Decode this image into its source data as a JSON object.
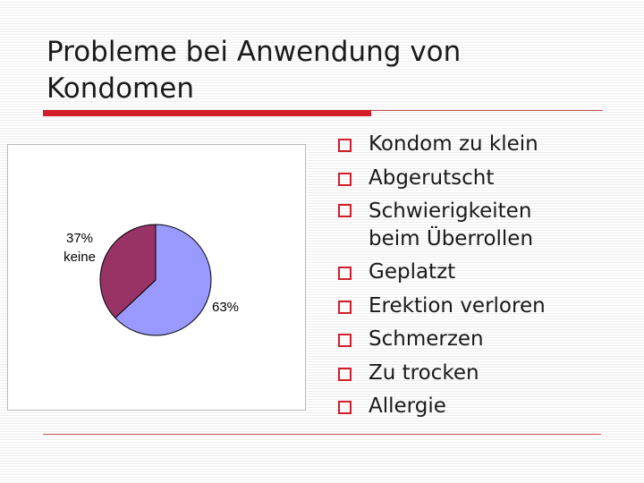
{
  "slide": {
    "title": "Probleme bei Anwendung von Kondomen",
    "accent_color": "#d11e2a"
  },
  "bullets": [
    "Kondom zu klein",
    "Abgerutscht",
    "Schwierigkeiten beim Überrollen",
    "Geplatzt",
    "Erektion verloren",
    "Schmerzen",
    "Zu trocken",
    "Allergie"
  ],
  "chart_data": {
    "type": "pie",
    "slices": [
      {
        "value": 63,
        "label": "63%",
        "color": "#9999ff"
      },
      {
        "value": 37,
        "label": "37%",
        "category": "keine",
        "color": "#993366"
      }
    ],
    "legend": "none"
  }
}
